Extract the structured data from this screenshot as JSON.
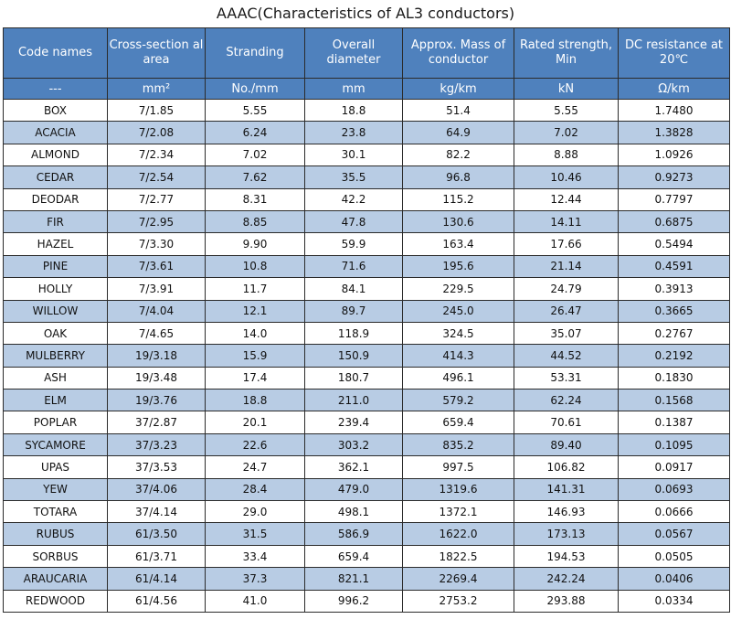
{
  "title": "AAAC(Characteristics of AL3 conductors)",
  "headers": [
    "Code names",
    "Cross-section al area",
    "Stranding",
    "Overall diameter",
    "Approx. Mass of conductor",
    "Rated strength, Min",
    "DC resistance at 20℃"
  ],
  "units": [
    "---",
    "mm²",
    "No./mm",
    "mm",
    "kg/km",
    "kN",
    "Ω/km"
  ],
  "rows": [
    [
      "BOX",
      "7/1.85",
      "5.55",
      "18.8",
      "51.4",
      "5.55",
      "1.7480"
    ],
    [
      "ACACIA",
      "7/2.08",
      "6.24",
      "23.8",
      "64.9",
      "7.02",
      "1.3828"
    ],
    [
      "ALMOND",
      "7/2.34",
      "7.02",
      "30.1",
      "82.2",
      "8.88",
      "1.0926"
    ],
    [
      "CEDAR",
      "7/2.54",
      "7.62",
      "35.5",
      "96.8",
      "10.46",
      "0.9273"
    ],
    [
      "DEODAR",
      "7/2.77",
      "8.31",
      "42.2",
      "115.2",
      "12.44",
      "0.7797"
    ],
    [
      "FIR",
      "7/2.95",
      "8.85",
      "47.8",
      "130.6",
      "14.11",
      "0.6875"
    ],
    [
      "HAZEL",
      "7/3.30",
      "9.90",
      "59.9",
      "163.4",
      "17.66",
      "0.5494"
    ],
    [
      "PINE",
      "7/3.61",
      "10.8",
      "71.6",
      "195.6",
      "21.14",
      "0.4591"
    ],
    [
      "HOLLY",
      "7/3.91",
      "11.7",
      "84.1",
      "229.5",
      "24.79",
      "0.3913"
    ],
    [
      "WILLOW",
      "7/4.04",
      "12.1",
      "89.7",
      "245.0",
      "26.47",
      "0.3665"
    ],
    [
      "OAK",
      "7/4.65",
      "14.0",
      "118.9",
      "324.5",
      "35.07",
      "0.2767"
    ],
    [
      "MULBERRY",
      "19/3.18",
      "15.9",
      "150.9",
      "414.3",
      "44.52",
      "0.2192"
    ],
    [
      "ASH",
      "19/3.48",
      "17.4",
      "180.7",
      "496.1",
      "53.31",
      "0.1830"
    ],
    [
      "ELM",
      "19/3.76",
      "18.8",
      "211.0",
      "579.2",
      "62.24",
      "0.1568"
    ],
    [
      "POPLAR",
      "37/2.87",
      "20.1",
      "239.4",
      "659.4",
      "70.61",
      "0.1387"
    ],
    [
      "SYCAMORE",
      "37/3.23",
      "22.6",
      "303.2",
      "835.2",
      "89.40",
      "0.1095"
    ],
    [
      "UPAS",
      "37/3.53",
      "24.7",
      "362.1",
      "997.5",
      "106.82",
      "0.0917"
    ],
    [
      "YEW",
      "37/4.06",
      "28.4",
      "479.0",
      "1319.6",
      "141.31",
      "0.0693"
    ],
    [
      "TOTARA",
      "37/4.14",
      "29.0",
      "498.1",
      "1372.1",
      "146.93",
      "0.0666"
    ],
    [
      "RUBUS",
      "61/3.50",
      "31.5",
      "586.9",
      "1622.0",
      "173.13",
      "0.0567"
    ],
    [
      "SORBUS",
      "61/3.71",
      "33.4",
      "659.4",
      "1822.5",
      "194.53",
      "0.0505"
    ],
    [
      "ARAUCARIA",
      "61/4.14",
      "37.3",
      "821.1",
      "2269.4",
      "242.24",
      "0.0406"
    ],
    [
      "REDWOOD",
      "61/4.56",
      "41.0",
      "996.2",
      "2753.2",
      "293.88",
      "0.0334"
    ]
  ]
}
